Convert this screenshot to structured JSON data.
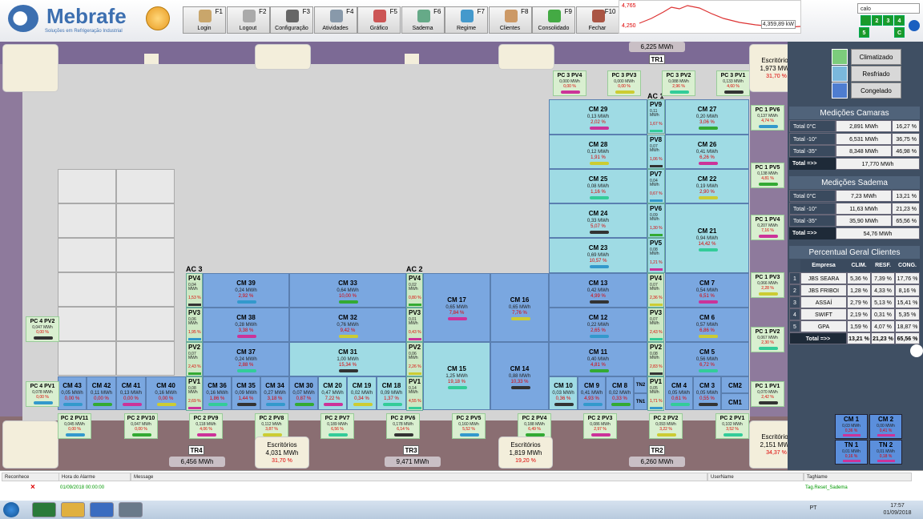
{
  "header": {
    "logo": "Mebrafe",
    "logo_sub": "Soluções em Refrigeração Industrial",
    "buttons": [
      {
        "label": "Login",
        "key": "F1"
      },
      {
        "label": "Logout",
        "key": "F2"
      },
      {
        "label": "Configuração",
        "key": "F3"
      },
      {
        "label": "Atividades",
        "key": "F4"
      },
      {
        "label": "Gráfico",
        "key": "F5"
      },
      {
        "label": "Sadema",
        "key": "F6"
      },
      {
        "label": "Regime",
        "key": "F7"
      },
      {
        "label": "Clientes",
        "key": "F8"
      },
      {
        "label": "Consolidado",
        "key": "F9"
      },
      {
        "label": "Fechar",
        "key": "F10"
      }
    ],
    "trend": {
      "max": "4,765",
      "min": "4,250",
      "value": "4,359,89 kW"
    },
    "search": "calo",
    "tabs": [
      "2",
      "3",
      "4",
      "5",
      "C"
    ]
  },
  "areas": [
    "AC 1",
    "AC 2",
    "AC 3"
  ],
  "transformers": [
    {
      "name": "TR1",
      "energy": "6,225 MWh"
    },
    {
      "name": "TR2",
      "energy": "6,260 MWh"
    },
    {
      "name": "TR3",
      "energy": "9,471 MWh"
    },
    {
      "name": "TR4",
      "energy": "6,456 MWh"
    }
  ],
  "offices": [
    {
      "title": "Escritórios",
      "energy": "1,973 MWh",
      "pct": "31,70 %"
    },
    {
      "title": "Escritórios",
      "energy": "4,031 MWh",
      "pct": "31,70 %"
    },
    {
      "title": "Escritórios",
      "energy": "1,819 MWh",
      "pct": "19,20 %"
    },
    {
      "title": "Escritórios",
      "energy": "2,151 MWh",
      "pct": "34,37 %"
    }
  ],
  "panels": [
    {
      "name": "PC 3 PV4",
      "energy": "0,000 MWh",
      "pct": "0,00 %"
    },
    {
      "name": "PC 3 PV3",
      "energy": "0,000 MWh",
      "pct": "0,00 %"
    },
    {
      "name": "PC 3 PV2",
      "energy": "0,088 MWh",
      "pct": "2,96 %"
    },
    {
      "name": "PC 3 PV1",
      "energy": "0,133 MWh",
      "pct": "4,60 %"
    },
    {
      "name": "PC 1 PV6",
      "energy": "0,137 MWh",
      "pct": "4,74 %"
    },
    {
      "name": "PC 1 PV5",
      "energy": "0,138 MWh",
      "pct": "4,81 %"
    },
    {
      "name": "PC 1 PV4",
      "energy": "0,207 MWh",
      "pct": "7,16 %"
    },
    {
      "name": "PC 1 PV3",
      "energy": "0,066 MWh",
      "pct": "2,28 %"
    },
    {
      "name": "PC 1 PV2",
      "energy": "0,067 MWh",
      "pct": "2,30 %"
    },
    {
      "name": "PC 1 PV1",
      "energy": "0,070 MWh",
      "pct": "2,42 %"
    },
    {
      "name": "PC 2 PV11",
      "energy": "0,045 MWh",
      "pct": "0,00 %"
    },
    {
      "name": "PC 2 PV10",
      "energy": "0,047 MWh",
      "pct": "0,00 %"
    },
    {
      "name": "PC 2 PV9",
      "energy": "0,118 MWh",
      "pct": "4,06 %"
    },
    {
      "name": "PC 2 PV8",
      "energy": "0,112 MWh",
      "pct": "3,87 %"
    },
    {
      "name": "PC 2 PV7",
      "energy": "0,189 MWh",
      "pct": "6,56 %"
    },
    {
      "name": "PC 2 PV6",
      "energy": "0,178 MWh",
      "pct": "6,14 %"
    },
    {
      "name": "PC 2 PV5",
      "energy": "0,160 MWh",
      "pct": "5,52 %"
    },
    {
      "name": "PC 2 PV4",
      "energy": "0,188 MWh",
      "pct": "6,49 %"
    },
    {
      "name": "PC 2 PV3",
      "energy": "0,086 MWh",
      "pct": "2,97 %"
    },
    {
      "name": "PC 2 PV2",
      "energy": "0,093 MWh",
      "pct": "3,22 %"
    },
    {
      "name": "PC 2 PV1",
      "energy": "0,102 MWh",
      "pct": "3,52 %"
    },
    {
      "name": "PC 4 PV2",
      "energy": "0,047 MWh",
      "pct": "0,00 %"
    },
    {
      "name": "PC 4 PV1",
      "energy": "0,078 MWh",
      "pct": "0,00 %"
    }
  ],
  "pvs": [
    {
      "name": "PV9",
      "energy": "0,11 MWh",
      "pct": "1,67 %"
    },
    {
      "name": "PV8",
      "energy": "0,07 MWh",
      "pct": "1,06 %"
    },
    {
      "name": "PV7",
      "energy": "0,04 MWh",
      "pct": "0,67 %"
    },
    {
      "name": "PV6",
      "energy": "0,09 MWh",
      "pct": "1,30 %"
    },
    {
      "name": "PV5",
      "energy": "0,08 MWh",
      "pct": "1,21 %"
    },
    {
      "name": "PV4",
      "energy": "0,07 MWh",
      "pct": "2,36 %"
    },
    {
      "name": "PV3",
      "energy": "0,07 MWh",
      "pct": "2,43 %"
    },
    {
      "name": "PV2",
      "energy": "0,08 MWh",
      "pct": "2,83 %"
    },
    {
      "name": "PV1",
      "energy": "0,05 MWh",
      "pct": "1,71 %"
    },
    {
      "name": "PV4",
      "energy": "0,02 MWh",
      "pct": "0,80 %"
    },
    {
      "name": "PV3",
      "energy": "0,01 MWh",
      "pct": "0,43 %"
    },
    {
      "name": "PV2",
      "energy": "0,06 MWh",
      "pct": "2,26 %"
    },
    {
      "name": "PV1",
      "energy": "0,14 MWh",
      "pct": "4,55 %"
    },
    {
      "name": "PV4",
      "energy": "0,04 MWh",
      "pct": "1,53 %"
    },
    {
      "name": "PV3",
      "energy": "0,06 MWh",
      "pct": "1,95 %"
    },
    {
      "name": "PV2",
      "energy": "0,07 MWh",
      "pct": "2,43 %"
    },
    {
      "name": "PV1",
      "energy": "0,08 MWh",
      "pct": "2,69 %"
    }
  ],
  "chambers": [
    {
      "name": "CM 29",
      "energy": "0,13 MWh",
      "pct": "2,02 %"
    },
    {
      "name": "CM 28",
      "energy": "0,12 MWh",
      "pct": "1,91 %"
    },
    {
      "name": "CM 25",
      "energy": "0,08 MWh",
      "pct": "1,16 %"
    },
    {
      "name": "CM 24",
      "energy": "0,33 MWh",
      "pct": "5,07 %"
    },
    {
      "name": "CM 23",
      "energy": "0,69 MWh",
      "pct": "10,57 %"
    },
    {
      "name": "CM 27",
      "energy": "0,20 MWh",
      "pct": "3,06 %"
    },
    {
      "name": "CM 26",
      "energy": "0,41 MWh",
      "pct": "6,26 %"
    },
    {
      "name": "CM 22",
      "energy": "0,19 MWh",
      "pct": "2,90 %"
    },
    {
      "name": "CM 21",
      "energy": "0,94 MWh",
      "pct": "14,42 %"
    },
    {
      "name": "CM 13",
      "energy": "0,42 MWh",
      "pct": "4,99 %"
    },
    {
      "name": "CM 12",
      "energy": "0,22 MWh",
      "pct": "2,65 %"
    },
    {
      "name": "CM 11",
      "energy": "0,40 MWh",
      "pct": "4,81 %"
    },
    {
      "name": "CM 7",
      "energy": "0,54 MWh",
      "pct": "6,51 %"
    },
    {
      "name": "CM 6",
      "energy": "0,57 MWh",
      "pct": "6,86 %"
    },
    {
      "name": "CM 5",
      "energy": "0,56 MWh",
      "pct": "6,72 %"
    },
    {
      "name": "CM 10",
      "energy": "0,03 MWh",
      "pct": "0,36 %"
    },
    {
      "name": "CM 9",
      "energy": "0,41 MWh",
      "pct": "4,93 %"
    },
    {
      "name": "CM 8",
      "energy": "0,02 MWh",
      "pct": "0,33 %"
    },
    {
      "name": "TN2"
    },
    {
      "name": "TN1"
    },
    {
      "name": "CM 4",
      "energy": "0,05 MWh",
      "pct": "0,61 %"
    },
    {
      "name": "CM 3",
      "energy": "0,05 MWh",
      "pct": "0,55 %"
    },
    {
      "name": "CM2"
    },
    {
      "name": "CM1"
    },
    {
      "name": "CM 17",
      "energy": "0,65 MWh",
      "pct": "7,84 %"
    },
    {
      "name": "CM 16",
      "energy": "0,65 MWh",
      "pct": "7,76 %"
    },
    {
      "name": "CM 15",
      "energy": "1,25 MWh",
      "pct": "19,18 %"
    },
    {
      "name": "CM 14",
      "energy": "0,88 MWh",
      "pct": "10,33 %"
    },
    {
      "name": "CM 39",
      "energy": "0,24 MWh",
      "pct": "2,92 %"
    },
    {
      "name": "CM 33",
      "energy": "0,64 MWh",
      "pct": "10,00 %"
    },
    {
      "name": "CM 38",
      "energy": "0,28 MWh",
      "pct": "3,38 %"
    },
    {
      "name": "CM 32",
      "energy": "0,76 MWh",
      "pct": "9,42 %"
    },
    {
      "name": "CM 37",
      "energy": "0,24 MWh",
      "pct": "2,88 %"
    },
    {
      "name": "CM 31",
      "energy": "1,00 MWh",
      "pct": "15,34 %"
    },
    {
      "name": "CM 43",
      "energy": "0,05 MWh",
      "pct": "0,00 %"
    },
    {
      "name": "CM 42",
      "energy": "0,11 MWh",
      "pct": "0,00 %"
    },
    {
      "name": "CM 41",
      "energy": "0,13 MWh",
      "pct": "0,00 %"
    },
    {
      "name": "CM 40",
      "energy": "0,16 MWh",
      "pct": "0,00 %"
    },
    {
      "name": "CM 36",
      "energy": "0,16 MWh",
      "pct": "1,86 %"
    },
    {
      "name": "CM 35",
      "energy": "0,09 MWh",
      "pct": "1,44 %"
    },
    {
      "name": "CM 34",
      "energy": "0,27 MWh",
      "pct": "3,18 %"
    },
    {
      "name": "CM 30",
      "energy": "0,07 MWh",
      "pct": "0,87 %"
    },
    {
      "name": "CM 20",
      "energy": "0,47 MWh",
      "pct": "7,22 %"
    },
    {
      "name": "CM 19",
      "energy": "0,02 MWh",
      "pct": "0,34 %"
    },
    {
      "name": "CM 18",
      "energy": "0,09 MWh",
      "pct": "1,37 %"
    }
  ],
  "legend": [
    "Climatizado",
    "Resfriado",
    "Congelado"
  ],
  "camaras": {
    "title": "Medições Camaras",
    "rows": [
      [
        "Total 0°C",
        "2,891 MWh",
        "16,27 %"
      ],
      [
        "Total -10°",
        "6,531 MWh",
        "36,75 %"
      ],
      [
        "Total -35°",
        "8,348 MWh",
        "46,98 %"
      ]
    ],
    "total": [
      "Total =>>",
      "17,770 MWh"
    ]
  },
  "sadema": {
    "title": "Medições Sadema",
    "rows": [
      [
        "Total 0°C",
        "7,23 MWh",
        "13,21 %"
      ],
      [
        "Total -10°",
        "11,63 MWh",
        "21,23 %"
      ],
      [
        "Total -35°",
        "35,90 MWh",
        "65,56 %"
      ]
    ],
    "total": [
      "Total =>>",
      "54,76 MWh"
    ]
  },
  "clientes": {
    "title": "Percentual Geral Clientes",
    "header": [
      "Empresa",
      "CLIM.",
      "RESF.",
      "CONG."
    ],
    "rows": [
      [
        "1",
        "JBS SEARA",
        "5,36 %",
        "7,39 %",
        "17,76 %"
      ],
      [
        "2",
        "JBS FRIBOI",
        "1,28 %",
        "4,33 %",
        "8,16 %"
      ],
      [
        "3",
        "ASSAÍ",
        "2,79 %",
        "5,13 %",
        "15,41 %"
      ],
      [
        "4",
        "SWIFT",
        "2,19 %",
        "0,31 %",
        "5,35 %"
      ],
      [
        "5",
        "GPA",
        "1,59 %",
        "4,07 %",
        "18,87 %"
      ]
    ],
    "total": [
      "Total =>>",
      "13,21 %",
      "21,23 %",
      "65,56 %"
    ]
  },
  "small": [
    {
      "name": "CM 1",
      "energy": "0,03 MWh",
      "pct": "0,36 %"
    },
    {
      "name": "CM 2",
      "energy": "0,00 MWh",
      "pct": "0,41 %"
    },
    {
      "name": "TN 1",
      "energy": "0,01 MWh",
      "pct": "0,16 %"
    },
    {
      "name": "TN 2",
      "energy": "0,01 MWh",
      "pct": "0,18 %"
    }
  ],
  "alarm": {
    "headers": [
      "Reconhece",
      "Hora do Alarme",
      "Message",
      "UserName",
      "TagName"
    ],
    "row": {
      "time": "01/09/2018 00:00:00",
      "tag": "Tag.Reset_Sadema"
    }
  },
  "taskbar": {
    "lang": "PT",
    "time": "17:57",
    "date": "01/09/2018"
  }
}
